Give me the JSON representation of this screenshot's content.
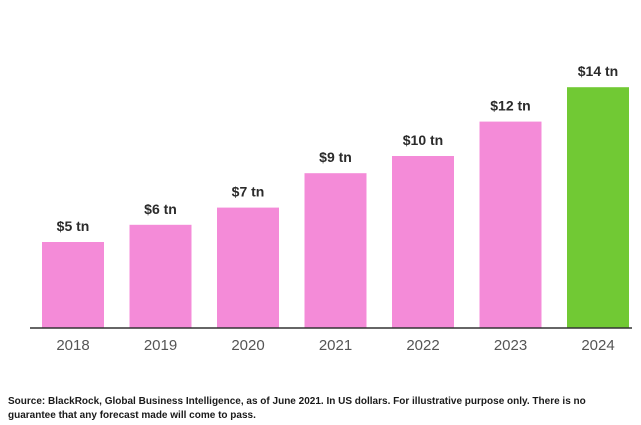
{
  "chart_data": {
    "type": "bar",
    "title": "",
    "xlabel": "",
    "ylabel": "",
    "categories": [
      "2018",
      "2019",
      "2020",
      "2021",
      "2022",
      "2023",
      "2024"
    ],
    "values": [
      5,
      6,
      7,
      9,
      10,
      12,
      14
    ],
    "value_labels": [
      "$5 tn",
      "$6 tn",
      "$7 tn",
      "$9 tn",
      "$10 tn",
      "$12 tn",
      "$14 tn"
    ],
    "unit": "tn USD",
    "ylim": [
      0,
      14
    ],
    "grid": false,
    "colors": {
      "default_bar": "#f48bd8",
      "highlight_bar": "#71c934",
      "axis": "#333333"
    },
    "highlight_index": 6
  },
  "footnote": "Source: BlackRock, Global Business Intelligence, as of June 2021. In US dollars. For illustrative purpose only. There is no guarantee that any forecast made will come to pass."
}
